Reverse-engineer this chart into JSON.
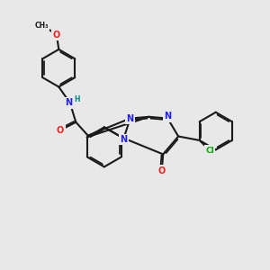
{
  "bg_color": "#e8e8e8",
  "bond_color": "#1a1a1a",
  "bond_width": 1.5,
  "dg": 0.055,
  "N_color": "#2020ee",
  "O_color": "#ee2020",
  "Cl_color": "#00aa00",
  "H_color": "#008888",
  "fs": 7.0,
  "fig_size": [
    3.0,
    3.0
  ],
  "dpi": 100,
  "xlim": [
    0,
    10
  ],
  "ylim": [
    0,
    10
  ]
}
